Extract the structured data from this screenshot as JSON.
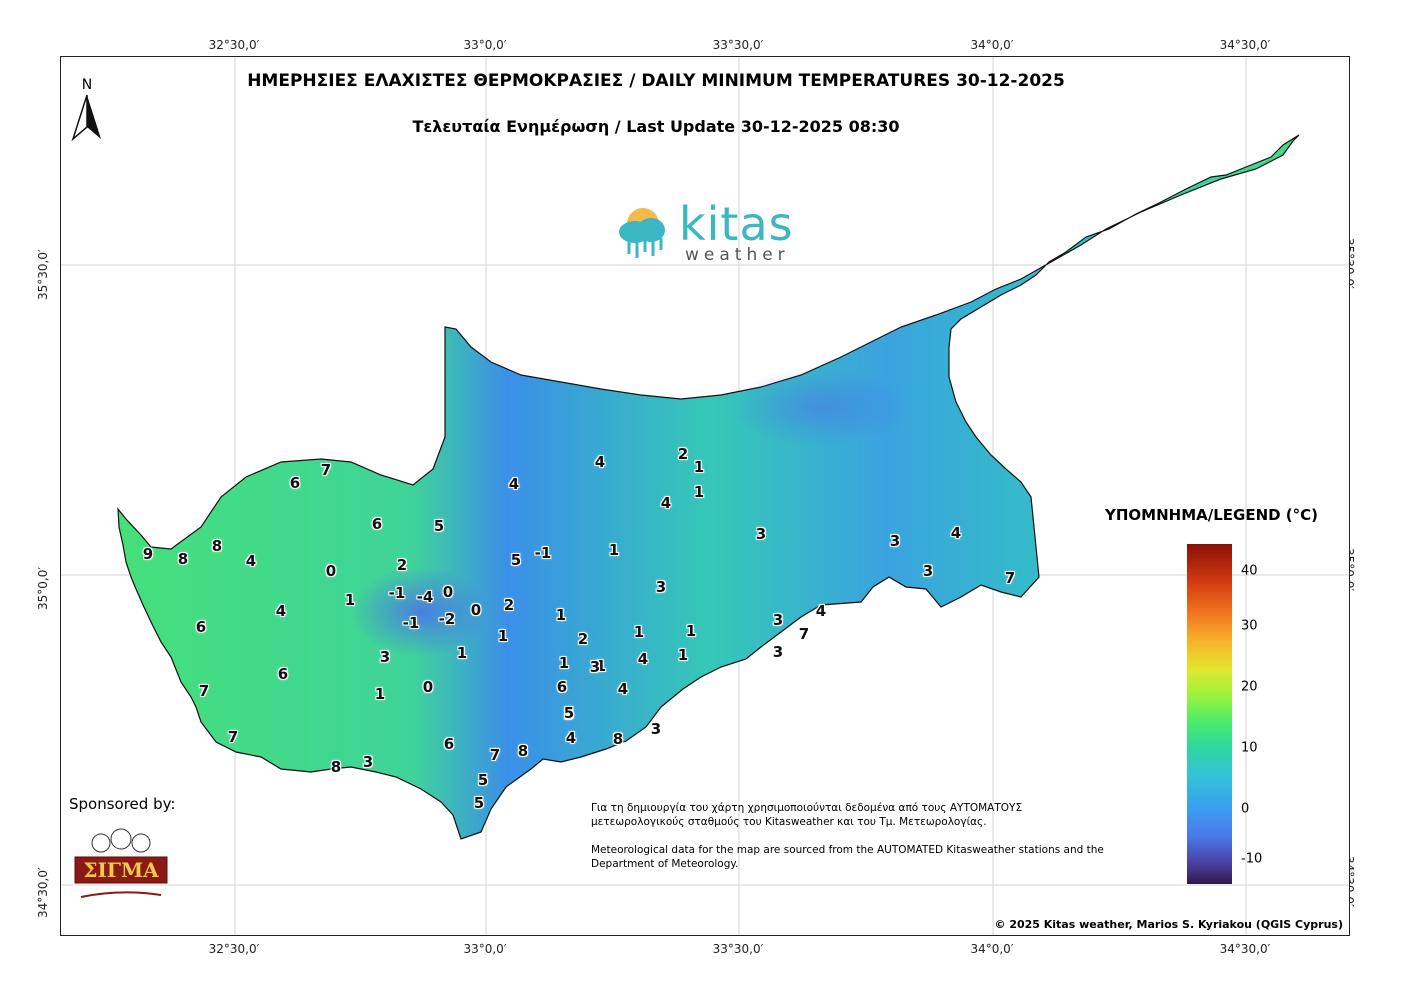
{
  "title": "ΗΜΕΡΗΣΙΕΣ ΕΛΑΧΙΣΤΕΣ ΘΕΡΜΟΚΡΑΣΙΕΣ / DAILY MINIMUM TEMPERATURES 30-12-2025",
  "subtitle": "Τελευταία Ενημέρωση / Last Update 30-12-2025 08:30",
  "north_label": "N",
  "brand": {
    "name": "kitas",
    "sub": "weather"
  },
  "ticks": {
    "lon": [
      "32°30,0′",
      "33°0,0′",
      "33°30,0′",
      "34°0,0′",
      "34°30,0′"
    ],
    "lat": [
      "35°30,0′",
      "35°0,0′",
      "34°30,0′"
    ]
  },
  "legend": {
    "title": "ΥΠΟΜΝΗΜΑ/LEGEND (°C)",
    "ticks": [
      "40",
      "30",
      "20",
      "10",
      "0",
      "-10"
    ],
    "range": [
      -15,
      45
    ]
  },
  "sponsor": {
    "label": "Sponsored by:",
    "logo_text": "ΣΙΓΜΑ"
  },
  "note": {
    "greek": "Για τη δημιουργία του χάρτη χρησιμοποιούνται δεδομένα από τους ΑΥΤΟΜΑΤΟΥΣ μετεωρολογικούς σταθμούς του Kitasweather και του Τμ. Μετεωρολογίας.",
    "english": "Meteorological data for the map are sourced from the AUTOMATED Kitasweather stations and the Department of Meteorology."
  },
  "copyright": "© 2025 Kitas weather, Marios S. Kyriakou (QGIS Cyprus)",
  "stations": [
    "9",
    "8",
    "8",
    "4",
    "6",
    "7",
    "6",
    "5",
    "0",
    "2",
    "4",
    "5",
    "-1",
    "1",
    "-1",
    "-4",
    "0",
    "-1",
    "-2",
    "0",
    "2",
    "1",
    "1",
    "6",
    "6",
    "4",
    "3",
    "1",
    "0",
    "1",
    "7",
    "7",
    "8",
    "3",
    "6",
    "7",
    "8",
    "5",
    "5",
    "5",
    "1",
    "2",
    "1",
    "6",
    "5",
    "4",
    "3",
    "4",
    "8",
    "3",
    "1",
    "1",
    "4",
    "2",
    "1",
    "4",
    "1",
    "1",
    "3",
    "1",
    "4",
    "3",
    "3",
    "3",
    "7",
    "4",
    "3",
    "3",
    "4",
    "7"
  ],
  "colors": {
    "land_cold": "#3b8fe8",
    "land_mid": "#33c3c0",
    "land_warm": "#45e07a",
    "accent": "#3bb7c4"
  }
}
